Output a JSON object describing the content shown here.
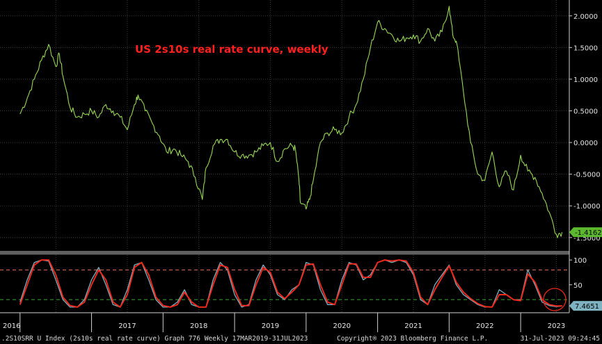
{
  "chart_data": [
    {
      "type": "line",
      "title": "US 2s10s real rate curve, weekly",
      "ylim": [
        -1.7,
        2.25
      ],
      "y_ticks": [
        "2.0000",
        "1.5000",
        "1.0000",
        "0.5000",
        "0.0000",
        "-0.5000",
        "-1.0000",
        "-1.5000"
      ],
      "y_tick_values": [
        2.0,
        1.5,
        1.0,
        0.5,
        0.0,
        -0.5,
        -1.0,
        -1.5
      ],
      "grid": true,
      "last_value_label": "-1.4162",
      "series": [
        {
          "color": "#99d955",
          "x": [
            2016.0,
            2016.1,
            2016.2,
            2016.3,
            2016.4,
            2016.5,
            2016.55,
            2016.6,
            2016.7,
            2016.8,
            2016.9,
            2017.0,
            2017.1,
            2017.2,
            2017.3,
            2017.4,
            2017.5,
            2017.6,
            2017.65,
            2017.75,
            2017.85,
            2017.95,
            2018.05,
            2018.15,
            2018.25,
            2018.35,
            2018.45,
            2018.55,
            2018.6,
            2018.7,
            2018.8,
            2018.9,
            2019.0,
            2019.1,
            2019.2,
            2019.3,
            2019.4,
            2019.5,
            2019.6,
            2019.7,
            2019.8,
            2019.85,
            2019.9,
            2019.92,
            2020.0,
            2020.05,
            2020.1,
            2020.2,
            2020.3,
            2020.4,
            2020.5,
            2020.6,
            2020.7,
            2020.8,
            2020.9,
            2021.0,
            2021.1,
            2021.2,
            2021.3,
            2021.4,
            2021.5,
            2021.6,
            2021.7,
            2021.8,
            2021.9,
            2022.0,
            2022.05,
            2022.1,
            2022.2,
            2022.3,
            2022.4,
            2022.5,
            2022.6,
            2022.7,
            2022.8,
            2022.9,
            2023.0,
            2023.1,
            2023.2,
            2023.3,
            2023.4,
            2023.5,
            2023.58
          ],
          "y": [
            0.45,
            0.7,
            1.0,
            1.3,
            1.55,
            1.2,
            1.4,
            1.05,
            0.55,
            0.4,
            0.45,
            0.5,
            0.4,
            0.6,
            0.5,
            0.4,
            0.2,
            0.6,
            0.75,
            0.5,
            0.3,
            0.1,
            -0.15,
            -0.1,
            -0.2,
            -0.3,
            -0.55,
            -0.9,
            -0.4,
            -0.05,
            0.05,
            0.05,
            -0.15,
            -0.2,
            -0.2,
            -0.15,
            -0.05,
            0.0,
            -0.3,
            -0.1,
            -0.05,
            -0.1,
            -0.6,
            -0.95,
            -1.05,
            -0.9,
            -0.6,
            0.0,
            0.15,
            0.2,
            0.15,
            0.4,
            0.6,
            1.0,
            1.5,
            1.9,
            1.8,
            1.7,
            1.6,
            1.65,
            1.7,
            1.6,
            1.8,
            1.6,
            1.75,
            2.15,
            1.7,
            1.6,
            0.8,
            0.0,
            -0.5,
            -0.6,
            -0.15,
            -0.7,
            -0.45,
            -0.75,
            -0.2,
            -0.45,
            -0.55,
            -0.8,
            -1.1,
            -1.45,
            -1.4162
          ]
        }
      ]
    },
    {
      "type": "line",
      "ylim": [
        -5,
        110
      ],
      "y_ticks": [
        "100",
        "50"
      ],
      "y_tick_values": [
        100,
        50
      ],
      "reference_lines": [
        {
          "value": 80,
          "color": "#e8735a"
        },
        {
          "value": 20,
          "color": "#3aaa3a"
        }
      ],
      "last_value_label": "7.4651",
      "series": [
        {
          "color": "#7fb3c2",
          "x": [
            2016.0,
            2016.1,
            2016.2,
            2016.3,
            2016.4,
            2016.5,
            2016.6,
            2016.7,
            2016.8,
            2016.9,
            2017.0,
            2017.1,
            2017.2,
            2017.3,
            2017.4,
            2017.5,
            2017.6,
            2017.7,
            2017.8,
            2017.9,
            2018.0,
            2018.1,
            2018.2,
            2018.3,
            2018.4,
            2018.5,
            2018.6,
            2018.7,
            2018.8,
            2018.9,
            2019.0,
            2019.1,
            2019.2,
            2019.3,
            2019.4,
            2019.5,
            2019.6,
            2019.7,
            2019.8,
            2019.9,
            2020.0,
            2020.1,
            2020.2,
            2020.3,
            2020.4,
            2020.5,
            2020.6,
            2020.7,
            2020.8,
            2020.9,
            2021.0,
            2021.1,
            2021.2,
            2021.3,
            2021.4,
            2021.5,
            2021.6,
            2021.7,
            2021.8,
            2021.9,
            2022.0,
            2022.1,
            2022.2,
            2022.3,
            2022.4,
            2022.5,
            2022.6,
            2022.7,
            2022.8,
            2022.9,
            2023.0,
            2023.1,
            2023.2,
            2023.3,
            2023.4,
            2023.5,
            2023.58
          ],
          "y": [
            15,
            60,
            95,
            100,
            98,
            60,
            20,
            5,
            5,
            20,
            60,
            85,
            50,
            10,
            5,
            40,
            90,
            95,
            60,
            20,
            5,
            5,
            15,
            40,
            10,
            5,
            5,
            60,
            95,
            80,
            30,
            5,
            10,
            60,
            90,
            70,
            30,
            20,
            40,
            50,
            95,
            90,
            40,
            10,
            10,
            60,
            95,
            90,
            60,
            70,
            95,
            100,
            95,
            100,
            95,
            70,
            20,
            10,
            50,
            70,
            90,
            50,
            30,
            20,
            10,
            5,
            5,
            40,
            30,
            20,
            20,
            80,
            50,
            15,
            8,
            6,
            7
          ]
        },
        {
          "color": "#ee2a1f",
          "x": [
            2016.0,
            2016.1,
            2016.2,
            2016.3,
            2016.4,
            2016.5,
            2016.6,
            2016.7,
            2016.8,
            2016.9,
            2017.0,
            2017.1,
            2017.2,
            2017.3,
            2017.4,
            2017.5,
            2017.6,
            2017.7,
            2017.8,
            2017.9,
            2018.0,
            2018.1,
            2018.2,
            2018.3,
            2018.4,
            2018.5,
            2018.6,
            2018.7,
            2018.8,
            2018.9,
            2019.0,
            2019.1,
            2019.2,
            2019.3,
            2019.4,
            2019.5,
            2019.6,
            2019.7,
            2019.8,
            2019.9,
            2020.0,
            2020.1,
            2020.2,
            2020.3,
            2020.4,
            2020.5,
            2020.6,
            2020.7,
            2020.8,
            2020.9,
            2021.0,
            2021.1,
            2021.2,
            2021.3,
            2021.4,
            2021.5,
            2021.6,
            2021.7,
            2021.8,
            2021.9,
            2022.0,
            2022.1,
            2022.2,
            2022.3,
            2022.4,
            2022.5,
            2022.6,
            2022.7,
            2022.8,
            2022.9,
            2023.0,
            2023.1,
            2023.2,
            2023.3,
            2023.4,
            2023.5,
            2023.58
          ],
          "y": [
            10,
            50,
            90,
            100,
            100,
            70,
            25,
            8,
            5,
            15,
            50,
            80,
            60,
            15,
            5,
            30,
            85,
            95,
            70,
            25,
            8,
            5,
            10,
            35,
            15,
            5,
            5,
            50,
            90,
            85,
            40,
            8,
            8,
            50,
            85,
            75,
            35,
            22,
            35,
            50,
            90,
            92,
            50,
            15,
            10,
            50,
            92,
            92,
            65,
            65,
            95,
            100,
            98,
            100,
            98,
            75,
            25,
            10,
            40,
            65,
            88,
            55,
            35,
            22,
            12,
            6,
            5,
            30,
            30,
            20,
            18,
            72,
            55,
            20,
            10,
            7,
            7.4651
          ]
        }
      ]
    }
  ],
  "x_ticks": [
    2016,
    2017,
    2018,
    2019,
    2020,
    2021,
    2022,
    2023
  ],
  "footer": {
    "left": ".2S10SRR U Index (2s10s real rate curve) Graph 776  Weekly 17MAR2019-31JUL2023",
    "center": "Copyright® 2023 Bloomberg Finance L.P.",
    "right": "31-Jul-2023 09:24:45"
  }
}
